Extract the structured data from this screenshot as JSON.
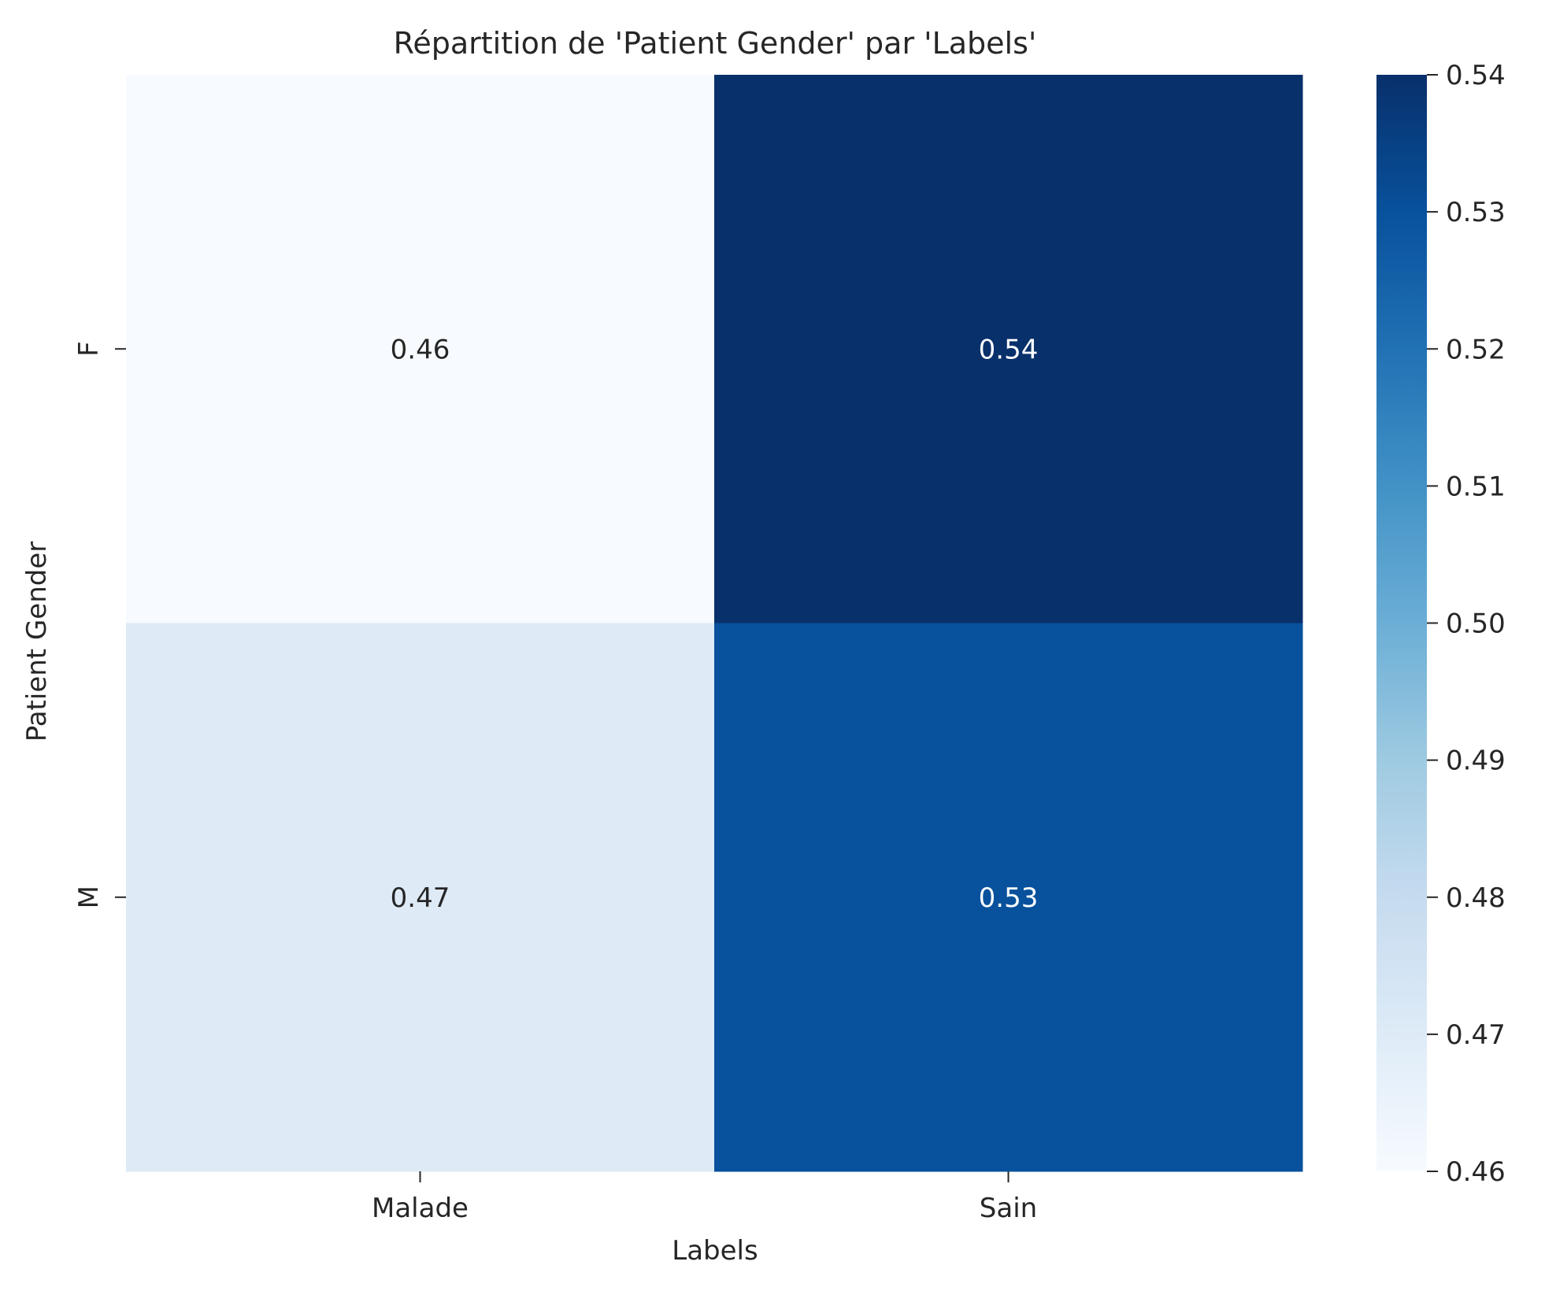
{
  "chart_data": {
    "type": "heatmap",
    "title": "Répartition de 'Patient Gender' par 'Labels'",
    "xlabel": "Labels",
    "ylabel": "Patient Gender",
    "x_categories": [
      "Malade",
      "Sain"
    ],
    "y_categories": [
      "F",
      "M"
    ],
    "values": [
      [
        0.46,
        0.54
      ],
      [
        0.47,
        0.53
      ]
    ],
    "cell_labels": [
      [
        "0.46",
        "0.54"
      ],
      [
        "0.47",
        "0.53"
      ]
    ],
    "colormap": "Blues",
    "colorbar": {
      "min": 0.46,
      "max": 0.54,
      "ticks": [
        "0.46",
        "0.47",
        "0.48",
        "0.49",
        "0.50",
        "0.51",
        "0.52",
        "0.53",
        "0.54"
      ]
    },
    "grid": false
  }
}
